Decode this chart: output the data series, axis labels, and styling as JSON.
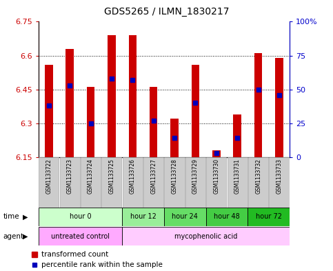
{
  "title": "GDS5265 / ILMN_1830217",
  "samples": [
    "GSM1133722",
    "GSM1133723",
    "GSM1133724",
    "GSM1133725",
    "GSM1133726",
    "GSM1133727",
    "GSM1133728",
    "GSM1133729",
    "GSM1133730",
    "GSM1133731",
    "GSM1133732",
    "GSM1133733"
  ],
  "bar_bottom": 6.15,
  "transformed_count": [
    6.56,
    6.63,
    6.46,
    6.69,
    6.69,
    6.46,
    6.32,
    6.56,
    6.18,
    6.34,
    6.61,
    6.59
  ],
  "percentile_rank": [
    38,
    53,
    25,
    58,
    57,
    27,
    14,
    40,
    3,
    14,
    50,
    46
  ],
  "ylim_left": [
    6.15,
    6.75
  ],
  "ylim_right": [
    0,
    100
  ],
  "yticks_left": [
    6.15,
    6.3,
    6.45,
    6.6,
    6.75
  ],
  "ytick_labels_left": [
    "6.15",
    "6.3",
    "6.45",
    "6.6",
    "6.75"
  ],
  "yticks_right": [
    0,
    25,
    50,
    75,
    100
  ],
  "ytick_labels_right": [
    "0",
    "25",
    "50",
    "75",
    "100%"
  ],
  "left_axis_color": "#cc0000",
  "right_axis_color": "#0000cc",
  "bar_color": "#cc0000",
  "dot_color": "#0000bb",
  "time_groups": [
    {
      "label": "hour 0",
      "start": 0,
      "end": 4,
      "color": "#ccffcc"
    },
    {
      "label": "hour 12",
      "start": 4,
      "end": 6,
      "color": "#99ee99"
    },
    {
      "label": "hour 24",
      "start": 6,
      "end": 8,
      "color": "#66dd66"
    },
    {
      "label": "hour 48",
      "start": 8,
      "end": 10,
      "color": "#44cc44"
    },
    {
      "label": "hour 72",
      "start": 10,
      "end": 12,
      "color": "#22bb22"
    }
  ],
  "agent_groups": [
    {
      "label": "untreated control",
      "start": 0,
      "end": 4,
      "color": "#ffaaff"
    },
    {
      "label": "mycophenolic acid",
      "start": 4,
      "end": 12,
      "color": "#ffccff"
    }
  ],
  "legend_red_label": "transformed count",
  "legend_blue_label": "percentile rank within the sample",
  "sample_bg": "#cccccc"
}
